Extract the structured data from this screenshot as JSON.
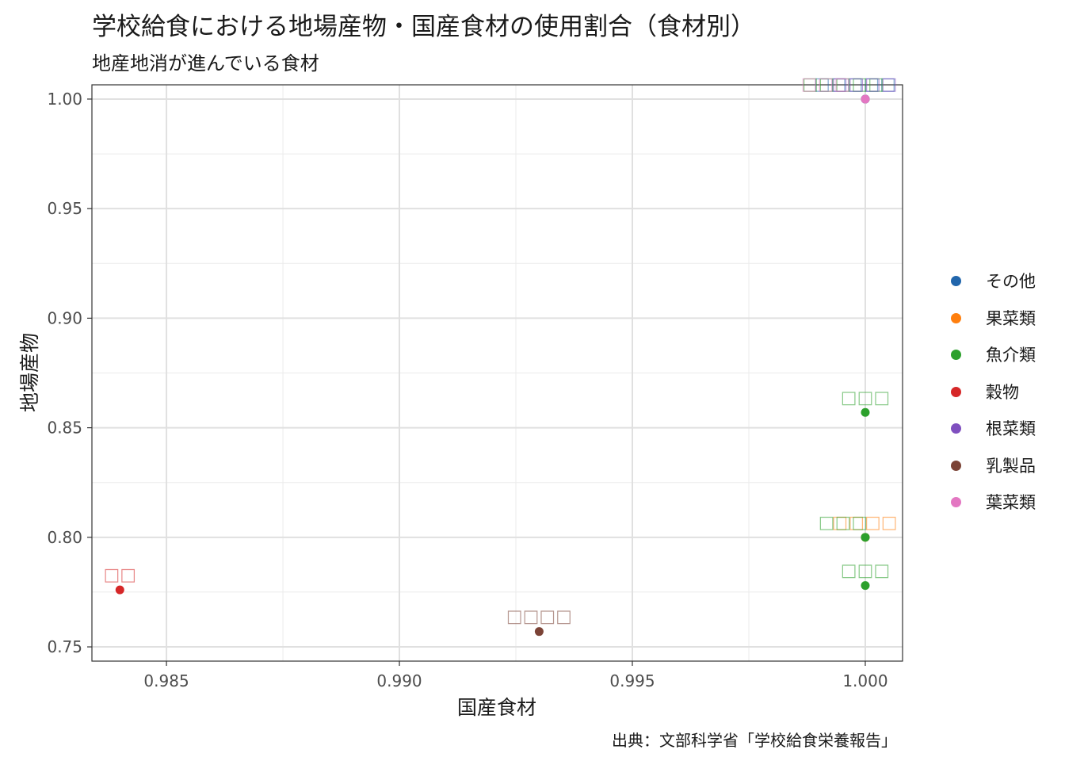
{
  "chart_data": {
    "type": "scatter",
    "title": "学校給食における地場産物・国産食材の使用割合（食材別）",
    "subtitle": "地産地消が進んでいる食材",
    "caption": "出典：文部科学省「学校給食栄養報告」",
    "xlabel": "国産食材",
    "ylabel": "地場産物",
    "xlim": [
      0.9834,
      1.0008
    ],
    "ylim": [
      0.7435,
      1.0065
    ],
    "x_ticks": [
      "0.985",
      "0.990",
      "0.995",
      "1.000"
    ],
    "x_tick_values": [
      0.985,
      0.99,
      0.995,
      1.0
    ],
    "y_ticks": [
      "0.75",
      "0.80",
      "0.85",
      "0.90",
      "0.95",
      "1.00"
    ],
    "y_tick_values": [
      0.75,
      0.8,
      0.85,
      0.9,
      0.95,
      1.0
    ],
    "grid": true,
    "legend_position": "right",
    "series": [
      {
        "name": "その他",
        "color": "#2166ac"
      },
      {
        "name": "果菜類",
        "color": "#ff7f0e"
      },
      {
        "name": "魚介類",
        "color": "#2ca02c"
      },
      {
        "name": "穀物",
        "color": "#d62728"
      },
      {
        "name": "根菜類",
        "color": "#7f4fbf"
      },
      {
        "name": "乳製品",
        "color": "#7b4336"
      },
      {
        "name": "葉菜類",
        "color": "#e377c2"
      }
    ],
    "points": [
      {
        "x": 1.0,
        "y": 1.0,
        "series": "その他",
        "label": "□□□□□"
      },
      {
        "x": 1.0,
        "y": 1.0,
        "series": "魚介類",
        "label": "□□□□□"
      },
      {
        "x": 1.0,
        "y": 1.0,
        "series": "根菜類",
        "label": "□□□□"
      },
      {
        "x": 1.0,
        "y": 1.0,
        "series": "葉菜類",
        "label": "□□□"
      },
      {
        "x": 1.0,
        "y": 0.857,
        "series": "魚介類",
        "label": "□□□"
      },
      {
        "x": 1.0,
        "y": 0.8,
        "series": "果菜類",
        "label": "□□□□"
      },
      {
        "x": 1.0,
        "y": 0.8,
        "series": "魚介類",
        "label": "□□□"
      },
      {
        "x": 1.0,
        "y": 0.778,
        "series": "魚介類",
        "label": "□□□"
      },
      {
        "x": 0.984,
        "y": 0.776,
        "series": "穀物",
        "label": "□□"
      },
      {
        "x": 0.993,
        "y": 0.757,
        "series": "乳製品",
        "label": "□□□□"
      }
    ]
  }
}
